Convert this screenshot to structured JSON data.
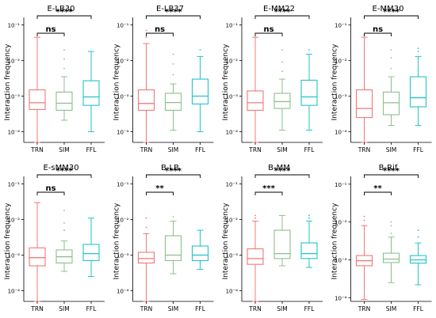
{
  "colors": {
    "TRN": "#f07878",
    "SIM": "#8cc08c",
    "FFL": "#22c4c8",
    "axis": "#000000"
  },
  "chart_data": [
    {
      "type": "box",
      "title": "E-LB30",
      "ylabel": "Interaction frequency",
      "scale": "log",
      "ylim": [
        5e-05,
        0.12
      ],
      "yticks": [
        "10⁻⁴",
        "10⁻³",
        "10⁻²",
        "10⁻¹"
      ],
      "categories": [
        "TRN",
        "SIM",
        "FFL"
      ],
      "boxes": [
        {
          "whislo": 5e-05,
          "q1": 0.00042,
          "med": 0.00065,
          "q3": 0.0015,
          "whishi": 0.045,
          "fliers": []
        },
        {
          "whislo": 0.00021,
          "q1": 0.0004,
          "med": 0.00063,
          "q3": 0.0013,
          "whishi": 0.0035,
          "fliers": [
            0.006,
            0.011,
            0.02
          ]
        },
        {
          "whislo": 0.0001,
          "q1": 0.00055,
          "med": 0.00095,
          "q3": 0.0027,
          "whishi": 0.018,
          "fliers": []
        }
      ],
      "comparisons": [
        {
          "pair": [
            "TRN",
            "SIM"
          ],
          "label": "ns"
        },
        {
          "pair": [
            "TRN",
            "FFL"
          ],
          "label": "****"
        }
      ]
    },
    {
      "type": "box",
      "title": "E-LB37",
      "ylabel": "Interaction frequency",
      "scale": "log",
      "ylim": [
        5e-05,
        0.12
      ],
      "yticks": [
        "10⁻⁴",
        "10⁻³",
        "10⁻²",
        "10⁻¹"
      ],
      "categories": [
        "TRN",
        "SIM",
        "FFL"
      ],
      "boxes": [
        {
          "whislo": 5e-05,
          "q1": 0.0004,
          "med": 0.00062,
          "q3": 0.0015,
          "whishi": 0.03,
          "fliers": [
            0.045,
            0.07
          ]
        },
        {
          "whislo": 0.00011,
          "q1": 0.0004,
          "med": 0.00066,
          "q3": 0.0012,
          "whishi": 0.0022,
          "fliers": [
            0.004,
            0.008,
            0.015
          ]
        },
        {
          "whislo": 0.0001,
          "q1": 0.0006,
          "med": 0.001,
          "q3": 0.003,
          "whishi": 0.013,
          "fliers": [
            0.02
          ]
        }
      ],
      "comparisons": [
        {
          "pair": [
            "TRN",
            "SIM"
          ],
          "label": "ns"
        },
        {
          "pair": [
            "TRN",
            "FFL"
          ],
          "label": "****"
        }
      ]
    },
    {
      "type": "box",
      "title": "E-MM22",
      "ylabel": "Interaction frequency",
      "scale": "log",
      "ylim": [
        5e-05,
        0.12
      ],
      "yticks": [
        "10⁻⁴",
        "10⁻³",
        "10⁻²",
        "10⁻¹"
      ],
      "categories": [
        "TRN",
        "SIM",
        "FFL"
      ],
      "boxes": [
        {
          "whislo": 5e-05,
          "q1": 0.0004,
          "med": 0.00065,
          "q3": 0.0014,
          "whishi": 0.045,
          "fliers": []
        },
        {
          "whislo": 0.00011,
          "q1": 0.00045,
          "med": 0.0007,
          "q3": 0.0012,
          "whishi": 0.003,
          "fliers": [
            0.005,
            0.009,
            0.02
          ]
        },
        {
          "whislo": 0.00011,
          "q1": 0.00055,
          "med": 0.00095,
          "q3": 0.0028,
          "whishi": 0.015,
          "fliers": [
            0.02
          ]
        }
      ],
      "comparisons": [
        {
          "pair": [
            "TRN",
            "SIM"
          ],
          "label": "ns"
        },
        {
          "pair": [
            "TRN",
            "FFL"
          ],
          "label": "****"
        }
      ]
    },
    {
      "type": "box",
      "title": "E-MM30",
      "ylabel": "Interaction frequency",
      "scale": "log",
      "ylim": [
        5e-05,
        0.12
      ],
      "yticks": [
        "10⁻⁴",
        "10⁻³",
        "10⁻²",
        "10⁻¹"
      ],
      "categories": [
        "TRN",
        "SIM",
        "FFL"
      ],
      "boxes": [
        {
          "whislo": 5e-05,
          "q1": 0.00025,
          "med": 0.00045,
          "q3": 0.0015,
          "whishi": 0.045,
          "fliers": []
        },
        {
          "whislo": 0.00015,
          "q1": 0.0003,
          "med": 0.00065,
          "q3": 0.0013,
          "whishi": 0.0035,
          "fliers": [
            0.006,
            0.012,
            0.02
          ]
        },
        {
          "whislo": 0.00015,
          "q1": 0.0005,
          "med": 0.0009,
          "q3": 0.0035,
          "whishi": 0.013,
          "fliers": [
            0.018,
            0.022
          ]
        }
      ],
      "comparisons": [
        {
          "pair": [
            "TRN",
            "SIM"
          ],
          "label": "ns"
        },
        {
          "pair": [
            "TRN",
            "FFL"
          ],
          "label": "****"
        }
      ]
    },
    {
      "type": "box",
      "title": "E-sMM30",
      "ylabel": "Interaction frequency",
      "scale": "log",
      "ylim": [
        5e-05,
        0.12
      ],
      "yticks": [
        "10⁻⁴",
        "10⁻³",
        "10⁻²",
        "10⁻¹"
      ],
      "categories": [
        "TRN",
        "SIM",
        "FFL"
      ],
      "boxes": [
        {
          "whislo": 5e-05,
          "q1": 0.0005,
          "med": 0.00085,
          "q3": 0.0016,
          "whishi": 0.03,
          "fliers": []
        },
        {
          "whislo": 0.00035,
          "q1": 0.0006,
          "med": 0.0009,
          "q3": 0.0014,
          "whishi": 0.0025,
          "fliers": [
            0.005,
            0.008,
            0.018
          ]
        },
        {
          "whislo": 0.00025,
          "q1": 0.0007,
          "med": 0.0011,
          "q3": 0.002,
          "whishi": 0.011,
          "fliers": []
        }
      ],
      "comparisons": [
        {
          "pair": [
            "TRN",
            "SIM"
          ],
          "label": "ns"
        },
        {
          "pair": [
            "TRN",
            "FFL"
          ],
          "label": "****"
        }
      ]
    },
    {
      "type": "box",
      "title": "B-LB",
      "ylabel": "Interaction frequency",
      "scale": "log",
      "ylim": [
        5e-05,
        0.12
      ],
      "yticks": [
        "10⁻⁴",
        "10⁻³",
        "10⁻²",
        "10⁻¹"
      ],
      "categories": [
        "TRN",
        "SIM",
        "FFL"
      ],
      "boxes": [
        {
          "whislo": 5e-05,
          "q1": 0.0006,
          "med": 0.0008,
          "q3": 0.0012,
          "whishi": 0.004,
          "fliers": [
            0.006,
            0.011
          ]
        },
        {
          "whislo": 0.0003,
          "q1": 0.0007,
          "med": 0.001,
          "q3": 0.0035,
          "whishi": 0.009,
          "fliers": [
            0.012
          ]
        },
        {
          "whislo": 0.0004,
          "q1": 0.0007,
          "med": 0.001,
          "q3": 0.0018,
          "whishi": 0.005,
          "fliers": []
        }
      ],
      "comparisons": [
        {
          "pair": [
            "TRN",
            "SIM"
          ],
          "label": "**"
        },
        {
          "pair": [
            "TRN",
            "FFL"
          ],
          "label": "****"
        }
      ]
    },
    {
      "type": "box",
      "title": "B-MM",
      "ylabel": "Interaction frequency",
      "scale": "log",
      "ylim": [
        5e-05,
        0.12
      ],
      "yticks": [
        "10⁻⁴",
        "10⁻³",
        "10⁻²",
        "10⁻¹"
      ],
      "categories": [
        "TRN",
        "SIM",
        "FFL"
      ],
      "boxes": [
        {
          "whislo": 5e-05,
          "q1": 0.00055,
          "med": 0.0008,
          "q3": 0.0015,
          "whishi": 0.009,
          "fliers": [
            0.011,
            0.013
          ]
        },
        {
          "whislo": 0.0005,
          "q1": 0.0008,
          "med": 0.0011,
          "q3": 0.005,
          "whishi": 0.013,
          "fliers": []
        },
        {
          "whislo": 0.00045,
          "q1": 0.0008,
          "med": 0.0011,
          "q3": 0.0022,
          "whishi": 0.009,
          "fliers": [
            0.011,
            0.013
          ]
        }
      ],
      "comparisons": [
        {
          "pair": [
            "TRN",
            "SIM"
          ],
          "label": "***"
        },
        {
          "pair": [
            "TRN",
            "FFL"
          ],
          "label": "****"
        }
      ]
    },
    {
      "type": "box",
      "title": "B-Rif",
      "ylabel": "Interaction frequency",
      "scale": "log",
      "ylim": [
        8e-05,
        0.12
      ],
      "yticks": [
        "10⁻⁴",
        "10⁻³",
        "10⁻²",
        "10⁻¹"
      ],
      "categories": [
        "TRN",
        "SIM",
        "FFL"
      ],
      "boxes": [
        {
          "whislo": 9e-05,
          "q1": 0.0007,
          "med": 0.00095,
          "q3": 0.0013,
          "whishi": 0.008,
          "fliers": [
            0.011,
            0.014
          ]
        },
        {
          "whislo": 0.00025,
          "q1": 0.00085,
          "med": 0.00105,
          "q3": 0.0015,
          "whishi": 0.004,
          "fliers": [
            0.005,
            0.008,
            0.01
          ]
        },
        {
          "whislo": 0.00022,
          "q1": 0.00082,
          "med": 0.001,
          "q3": 0.0013,
          "whishi": 0.0028,
          "fliers": [
            0.004,
            0.006
          ]
        }
      ],
      "comparisons": [
        {
          "pair": [
            "TRN",
            "SIM"
          ],
          "label": "**"
        },
        {
          "pair": [
            "TRN",
            "FFL"
          ],
          "label": "****"
        }
      ]
    }
  ]
}
